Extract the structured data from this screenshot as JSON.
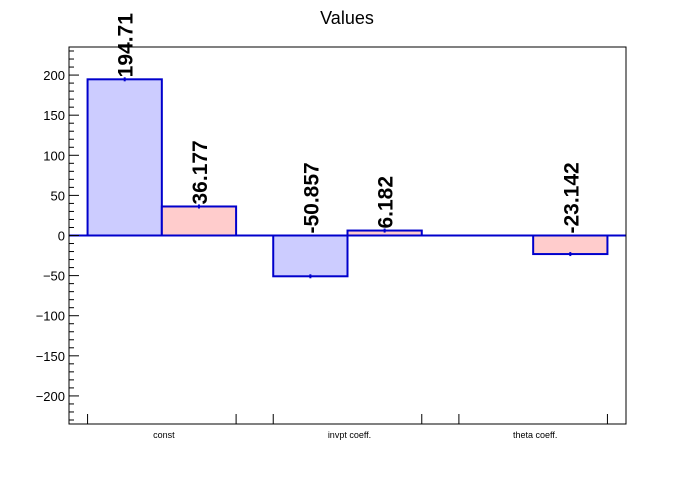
{
  "chart_data": {
    "type": "bar",
    "title": "Values",
    "xlabel": "",
    "ylabel": "",
    "categories": [
      "const",
      "invpt coeff.",
      "theta coeff."
    ],
    "ylim": [
      -235,
      235
    ],
    "yticks": [
      200,
      150,
      100,
      50,
      0,
      -50,
      -100,
      -150,
      -200
    ],
    "ytick_labels": [
      "200",
      "150",
      "100",
      "50",
      "0",
      "−50",
      "−100",
      "−150",
      "−200"
    ],
    "grid": false,
    "legend": "none",
    "series": [
      {
        "color": "#ccccff",
        "edge_color": "#0000cc",
        "values": [
          194.71,
          -50.857,
          null
        ],
        "labels": [
          "194.71",
          "-50.857",
          ""
        ]
      },
      {
        "color": "#ffcccc",
        "edge_color": "#0000cc",
        "values": [
          36.177,
          6.182,
          -23.142
        ],
        "labels": [
          "36.177",
          "6.182",
          "-23.142"
        ]
      }
    ]
  }
}
